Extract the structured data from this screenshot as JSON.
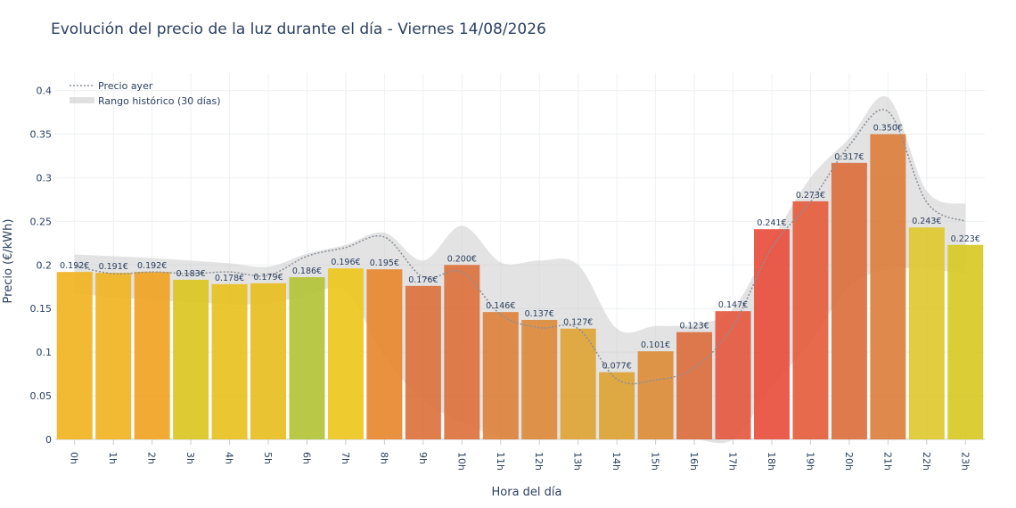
{
  "chart_data": {
    "type": "bar",
    "title": "Evolución del precio de la luz durante el día - Viernes 14/08/2026",
    "xlabel": "Hora del día",
    "ylabel": "Precio (€/kWh)",
    "ylim": [
      0,
      0.42
    ],
    "yticks": [
      0,
      0.05,
      0.1,
      0.15,
      0.2,
      0.25,
      0.3,
      0.35,
      0.4
    ],
    "ytick_labels": [
      "0",
      "0.05",
      "0.1",
      "0.15",
      "0.2",
      "0.25",
      "0.3",
      "0.35",
      "0.4"
    ],
    "grid": true,
    "categories": [
      "0h",
      "1h",
      "2h",
      "3h",
      "4h",
      "5h",
      "6h",
      "7h",
      "8h",
      "9h",
      "10h",
      "11h",
      "12h",
      "13h",
      "14h",
      "15h",
      "16h",
      "17h",
      "18h",
      "19h",
      "20h",
      "21h",
      "22h",
      "23h"
    ],
    "values": [
      0.192,
      0.191,
      0.192,
      0.183,
      0.178,
      0.179,
      0.186,
      0.196,
      0.195,
      0.176,
      0.2,
      0.146,
      0.137,
      0.127,
      0.077,
      0.101,
      0.123,
      0.147,
      0.241,
      0.273,
      0.317,
      0.35,
      0.243,
      0.223
    ],
    "data_labels": [
      "0.192€",
      "0.191€",
      "0.192€",
      "0.183€",
      "0.178€",
      "0.179€",
      "0.186€",
      "0.196€",
      "0.195€",
      "0.176€",
      "0.200€",
      "0.146€",
      "0.137€",
      "0.127€",
      "0.077€",
      "0.101€",
      "0.123€",
      "0.147€",
      "0.241€",
      "0.273€",
      "0.317€",
      "0.350€",
      "0.243€",
      "0.223€"
    ],
    "bar_colors": [
      "#f0b21c",
      "#f0b21c",
      "#f0a21f",
      "#dac51e",
      "#e7c01c",
      "#e8bd1c",
      "#b2c233",
      "#ecc61a",
      "#e8852a",
      "#dc6f3a",
      "#dc6f3a",
      "#dc7f38",
      "#dd8837",
      "#dea232",
      "#dda131",
      "#dc8b35",
      "#dc6c3c",
      "#e4553c",
      "#e84b3a",
      "#e45a3a",
      "#dc6b3a",
      "#dc7c3a",
      "#dec82a",
      "#d7c820"
    ],
    "series": [
      {
        "name": "Precio ayer",
        "style": "dotted",
        "color": "#8a9099",
        "values": [
          0.199,
          0.19,
          0.192,
          0.19,
          0.192,
          0.188,
          0.21,
          0.22,
          0.232,
          0.186,
          0.192,
          0.143,
          0.128,
          0.127,
          0.069,
          0.068,
          0.082,
          0.13,
          0.22,
          0.272,
          0.337,
          0.376,
          0.272,
          0.25
        ]
      },
      {
        "name": "Rango histórico (30 días)",
        "type": "band",
        "color": "#cccccc",
        "lower": [
          0.167,
          0.163,
          0.16,
          0.157,
          0.155,
          0.156,
          0.165,
          0.17,
          0.095,
          0.045,
          0.02,
          0.003,
          0.0,
          0.0,
          0.0,
          0.0,
          0.0,
          0.0,
          0.06,
          0.112,
          0.175,
          0.195,
          0.195,
          0.19
        ],
        "upper": [
          0.212,
          0.21,
          0.208,
          0.205,
          0.202,
          0.198,
          0.213,
          0.223,
          0.237,
          0.205,
          0.245,
          0.203,
          0.205,
          0.2,
          0.127,
          0.13,
          0.132,
          0.15,
          0.228,
          0.3,
          0.345,
          0.392,
          0.285,
          0.27
        ]
      }
    ],
    "legend_position": "top-left"
  }
}
